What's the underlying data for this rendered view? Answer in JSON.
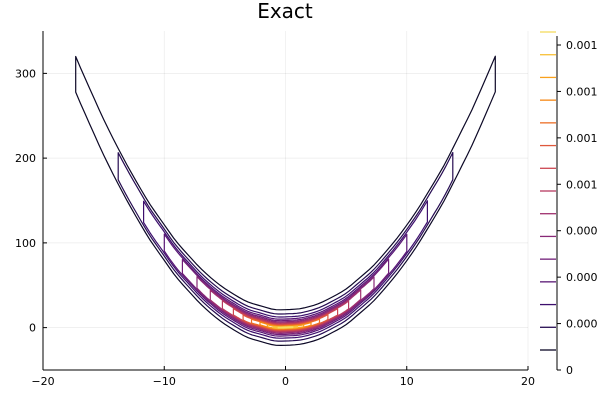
{
  "chart_data": {
    "type": "contour",
    "title": "Exact",
    "xlim": [
      -20,
      20
    ],
    "ylim": [
      -50,
      350
    ],
    "x_ticks": [
      {
        "value": -20,
        "label": "−20"
      },
      {
        "value": -10,
        "label": "−10"
      },
      {
        "value": 0,
        "label": "0"
      },
      {
        "value": 10,
        "label": "10"
      },
      {
        "value": 20,
        "label": "20"
      }
    ],
    "y_ticks": [
      {
        "value": 0,
        "label": "0"
      },
      {
        "value": 100,
        "label": "100"
      },
      {
        "value": 200,
        "label": "200"
      },
      {
        "value": 300,
        "label": "300"
      }
    ],
    "grid": true,
    "function": "banana-shaped density with ridge y = x^2; contour level k traced where |y - x^2| = w_k and |x| <= xmax_k",
    "contour_levels": [
      {
        "level": 1,
        "w": 21,
        "xmax": 17.3,
        "color": "#0c0826"
      },
      {
        "level": 2,
        "w": 16,
        "xmax": 13.8,
        "color": "#260c52"
      },
      {
        "level": 3,
        "w": 12.5,
        "xmax": 11.7,
        "color": "#3d0f6d"
      },
      {
        "level": 4,
        "w": 10,
        "xmax": 10.0,
        "color": "#581574"
      },
      {
        "level": 5,
        "w": 8.2,
        "xmax": 8.5,
        "color": "#701e78"
      },
      {
        "level": 6,
        "w": 6.8,
        "xmax": 7.3,
        "color": "#882977"
      },
      {
        "level": 7,
        "w": 5.6,
        "xmax": 6.2,
        "color": "#9f2f6e"
      },
      {
        "level": 8,
        "w": 4.6,
        "xmax": 5.2,
        "color": "#b73a61"
      },
      {
        "level": 9,
        "w": 3.7,
        "xmax": 4.3,
        "color": "#cc4550"
      },
      {
        "level": 10,
        "w": 2.9,
        "xmax": 3.5,
        "color": "#df583c"
      },
      {
        "level": 11,
        "w": 2.2,
        "xmax": 2.8,
        "color": "#ed6e25"
      },
      {
        "level": 12,
        "w": 1.6,
        "xmax": 2.1,
        "color": "#f68714"
      },
      {
        "level": 13,
        "w": 1.1,
        "xmax": 1.5,
        "color": "#f9a11d"
      },
      {
        "level": 14,
        "w": 0.7,
        "xmax": 1.0,
        "color": "#f8c038"
      },
      {
        "level": 15,
        "w": 0.4,
        "xmax": 0.6,
        "color": "#f3dc5f"
      }
    ],
    "colorbar": {
      "min": 0,
      "max": 0.0015,
      "tick_labels": [
        "0",
        "0.000",
        "0.000",
        "0.000",
        "0.001",
        "0.001",
        "0.001",
        "0.001"
      ],
      "level_colors": [
        "#0c0826",
        "#260c52",
        "#3d0f6d",
        "#581574",
        "#701e78",
        "#882977",
        "#9f2f6e",
        "#b73a61",
        "#cc4550",
        "#df583c",
        "#ed6e25",
        "#f68714",
        "#f9a11d",
        "#f8c038",
        "#f3dc5f"
      ]
    }
  }
}
